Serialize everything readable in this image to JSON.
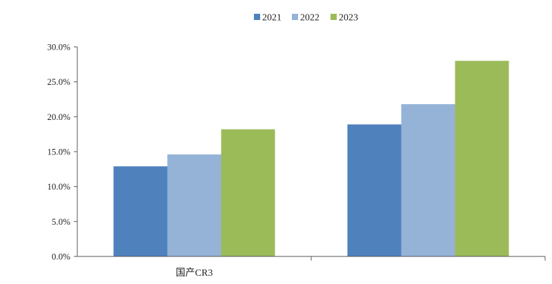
{
  "chart_data": {
    "type": "bar",
    "categories": [
      "国产CR3",
      ""
    ],
    "series": [
      {
        "name": "2021",
        "values": [
          12.9,
          18.9
        ],
        "color": "#4f81bd"
      },
      {
        "name": "2022",
        "values": [
          14.6,
          21.8
        ],
        "color": "#95b3d7"
      },
      {
        "name": "2023",
        "values": [
          18.2,
          28.0
        ],
        "color": "#9bbb59"
      }
    ],
    "yticks": [
      "0.0%",
      "5.0%",
      "10.0%",
      "15.0%",
      "20.0%",
      "25.0%",
      "30.0%"
    ],
    "ylim": [
      0,
      30
    ],
    "legend_position": "top",
    "grid": false
  }
}
